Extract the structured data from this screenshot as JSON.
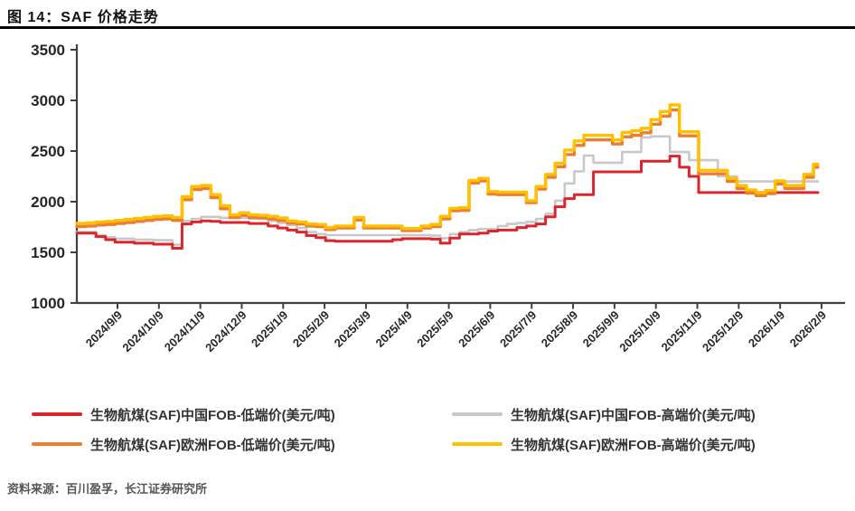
{
  "figure": {
    "title": "图 14：SAF 价格走势"
  },
  "source": {
    "label": "资料来源：百川盈孚，长江证券研究所"
  },
  "colors": {
    "axis": "#404040",
    "tick_label": "#262626",
    "red": "#D9262C",
    "gray": "#C8C8C8",
    "orange": "#ED7D31",
    "yellow": "#FFC000"
  },
  "chart_data": {
    "type": "line",
    "title": "SAF 价格走势",
    "ylim": [
      1000,
      3500
    ],
    "y_ticks": [
      3500,
      3000,
      2500,
      2000,
      1500,
      1000
    ],
    "grid": false,
    "legend_position": "bottom",
    "x_labels": [
      "2024/9/9",
      "2024/10/9",
      "2024/11/9",
      "2024/12/9",
      "2025/1/9",
      "2025/2/9",
      "2025/3/9",
      "2025/4/9",
      "2025/5/9",
      "2025/6/9",
      "2025/7/9",
      "2025/8/9",
      "2025/9/9",
      "2025/10/9",
      "2025/11/9",
      "2025/12/9",
      "2026/1/9",
      "2026/2/9"
    ],
    "series": [
      {
        "name": "生物航煤(SAF)中国FOB-低端价(美元/吨)",
        "color": "#D9262C",
        "values": [
          1690,
          1690,
          1655,
          1625,
          1600,
          1600,
          1590,
          1590,
          1580,
          1580,
          1540,
          1780,
          1800,
          1810,
          1805,
          1795,
          1795,
          1795,
          1785,
          1785,
          1760,
          1740,
          1720,
          1700,
          1665,
          1645,
          1615,
          1610,
          1610,
          1610,
          1610,
          1610,
          1610,
          1625,
          1635,
          1635,
          1635,
          1630,
          1590,
          1640,
          1680,
          1680,
          1690,
          1710,
          1720,
          1720,
          1745,
          1760,
          1780,
          1850,
          1950,
          2030,
          2070,
          2070,
          2295,
          2295,
          2295,
          2295,
          2295,
          2400,
          2400,
          2400,
          2450,
          2340,
          2250,
          2090,
          2090,
          2090,
          2090,
          2090,
          2090,
          2090,
          2090,
          2090,
          2090,
          2090,
          2090,
          2090
        ]
      },
      {
        "name": "生物航煤(SAF)中国FOB-高端价(美元/吨)",
        "color": "#C8C8C8",
        "values": [
          1700,
          1700,
          1670,
          1650,
          1635,
          1635,
          1625,
          1625,
          1620,
          1620,
          1575,
          1810,
          1830,
          1850,
          1850,
          1840,
          1840,
          1840,
          1830,
          1830,
          1810,
          1790,
          1770,
          1740,
          1700,
          1680,
          1670,
          1670,
          1670,
          1670,
          1670,
          1670,
          1670,
          1670,
          1670,
          1670,
          1670,
          1665,
          1640,
          1680,
          1700,
          1720,
          1730,
          1730,
          1760,
          1780,
          1790,
          1800,
          1830,
          1880,
          2010,
          2180,
          2300,
          2455,
          2385,
          2385,
          2385,
          2490,
          2490,
          2635,
          2645,
          2645,
          2490,
          2490,
          2410,
          2410,
          2410,
          2250,
          2250,
          2200,
          2200,
          2200,
          2200,
          2200,
          2200,
          2200,
          2200,
          2200
        ]
      },
      {
        "name": "生物航煤(SAF)欧洲FOB-低端价(美元/吨)",
        "color": "#ED7D31",
        "values": [
          1755,
          1760,
          1770,
          1775,
          1785,
          1795,
          1805,
          1815,
          1825,
          1830,
          1815,
          2020,
          2120,
          2130,
          2040,
          1930,
          1845,
          1865,
          1845,
          1840,
          1830,
          1815,
          1790,
          1780,
          1760,
          1755,
          1725,
          1740,
          1740,
          1820,
          1740,
          1740,
          1740,
          1740,
          1715,
          1715,
          1740,
          1755,
          1830,
          1910,
          1915,
          2185,
          2205,
          2075,
          2070,
          2070,
          2070,
          1990,
          2125,
          2240,
          2345,
          2465,
          2555,
          2610,
          2610,
          2610,
          2570,
          2640,
          2655,
          2680,
          2765,
          2845,
          2905,
          2650,
          2650,
          2275,
          2275,
          2275,
          2200,
          2130,
          2085,
          2060,
          2080,
          2175,
          2130,
          2130,
          2240,
          2340
        ]
      },
      {
        "name": "生物航煤(SAF)欧洲FOB-高端价(美元/吨)",
        "color": "#FFC000",
        "values": [
          1785,
          1790,
          1800,
          1805,
          1815,
          1825,
          1835,
          1845,
          1855,
          1860,
          1845,
          2050,
          2150,
          2160,
          2070,
          1960,
          1870,
          1890,
          1870,
          1865,
          1855,
          1840,
          1810,
          1800,
          1780,
          1775,
          1745,
          1760,
          1760,
          1845,
          1760,
          1760,
          1760,
          1760,
          1735,
          1735,
          1760,
          1775,
          1855,
          1935,
          1940,
          2210,
          2230,
          2100,
          2095,
          2095,
          2095,
          2010,
          2150,
          2270,
          2380,
          2510,
          2600,
          2655,
          2655,
          2655,
          2610,
          2685,
          2700,
          2725,
          2810,
          2890,
          2955,
          2690,
          2690,
          2310,
          2310,
          2310,
          2230,
          2160,
          2115,
          2090,
          2110,
          2205,
          2160,
          2160,
          2270,
          2370
        ]
      }
    ]
  }
}
